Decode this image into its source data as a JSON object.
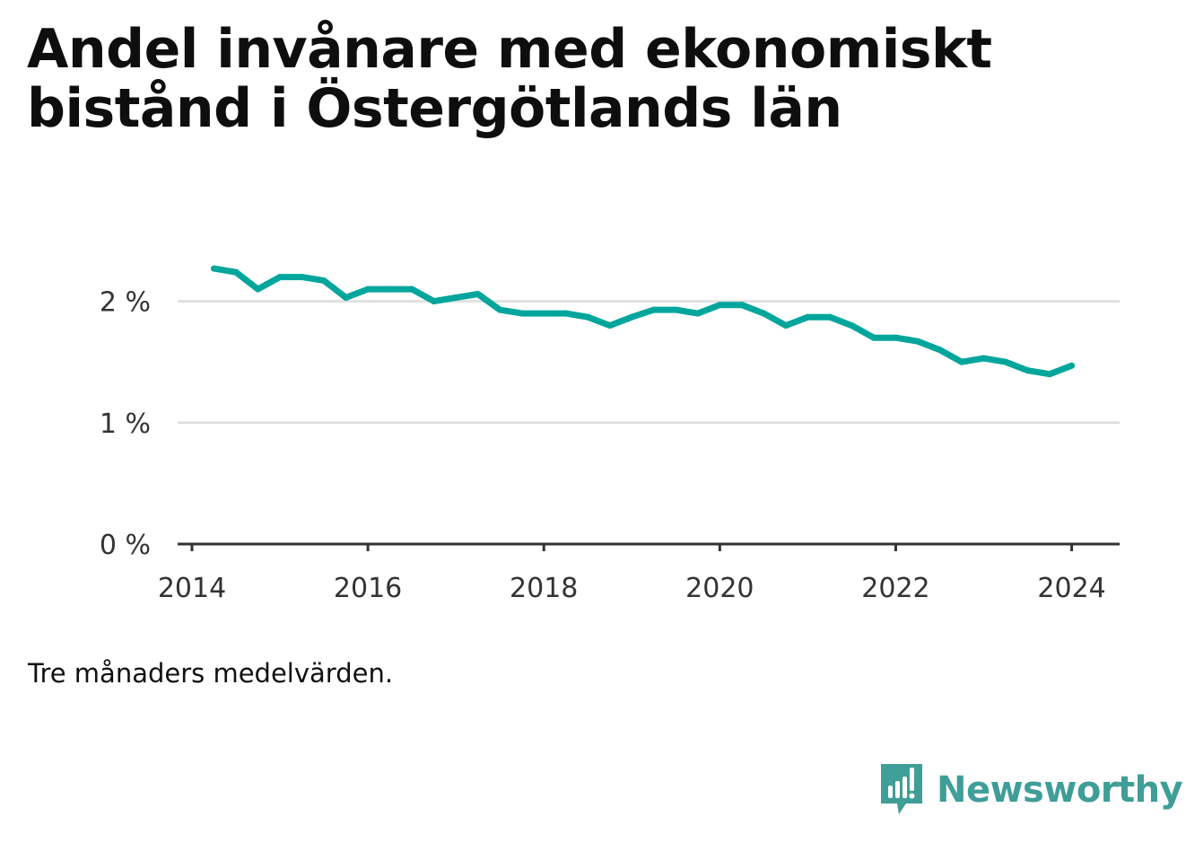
{
  "chart_data": {
    "type": "line",
    "title": "Andel invånare med ekonomiskt bistånd i Östergötlands län",
    "subtitle": "",
    "xlabel": "",
    "ylabel": "",
    "note": "Tre månaders medelvärden.",
    "x_range": [
      2014.0,
      2024.3
    ],
    "ylim": [
      0,
      2.5
    ],
    "y_ticks": [
      {
        "value": 0,
        "label": "0 %"
      },
      {
        "value": 1,
        "label": "1 %"
      },
      {
        "value": 2,
        "label": "2 %"
      }
    ],
    "x_ticks": [
      {
        "value": 2014,
        "label": "2014"
      },
      {
        "value": 2016,
        "label": "2016"
      },
      {
        "value": 2018,
        "label": "2018"
      },
      {
        "value": 2020,
        "label": "2020"
      },
      {
        "value": 2022,
        "label": "2022"
      },
      {
        "value": 2024,
        "label": "2024"
      }
    ],
    "grid": true,
    "series": [
      {
        "color": "#00a69c",
        "points": [
          {
            "x": "2014-04",
            "y": 2.27
          },
          {
            "x": "2014-07",
            "y": 2.24
          },
          {
            "x": "2014-10",
            "y": 2.1
          },
          {
            "x": "2015-01",
            "y": 2.2
          },
          {
            "x": "2015-04",
            "y": 2.2
          },
          {
            "x": "2015-07",
            "y": 2.17
          },
          {
            "x": "2015-10",
            "y": 2.03
          },
          {
            "x": "2016-01",
            "y": 2.1
          },
          {
            "x": "2016-04",
            "y": 2.1
          },
          {
            "x": "2016-07",
            "y": 2.1
          },
          {
            "x": "2016-10",
            "y": 2.0
          },
          {
            "x": "2017-01",
            "y": 2.03
          },
          {
            "x": "2017-04",
            "y": 2.06
          },
          {
            "x": "2017-07",
            "y": 1.93
          },
          {
            "x": "2017-10",
            "y": 1.9
          },
          {
            "x": "2018-01",
            "y": 1.9
          },
          {
            "x": "2018-04",
            "y": 1.9
          },
          {
            "x": "2018-07",
            "y": 1.87
          },
          {
            "x": "2018-10",
            "y": 1.8
          },
          {
            "x": "2019-01",
            "y": 1.87
          },
          {
            "x": "2019-04",
            "y": 1.93
          },
          {
            "x": "2019-07",
            "y": 1.93
          },
          {
            "x": "2019-10",
            "y": 1.9
          },
          {
            "x": "2020-01",
            "y": 1.97
          },
          {
            "x": "2020-04",
            "y": 1.97
          },
          {
            "x": "2020-07",
            "y": 1.9
          },
          {
            "x": "2020-10",
            "y": 1.8
          },
          {
            "x": "2021-01",
            "y": 1.87
          },
          {
            "x": "2021-04",
            "y": 1.87
          },
          {
            "x": "2021-07",
            "y": 1.8
          },
          {
            "x": "2021-10",
            "y": 1.7
          },
          {
            "x": "2022-01",
            "y": 1.7
          },
          {
            "x": "2022-04",
            "y": 1.67
          },
          {
            "x": "2022-07",
            "y": 1.6
          },
          {
            "x": "2022-10",
            "y": 1.5
          },
          {
            "x": "2023-01",
            "y": 1.53
          },
          {
            "x": "2023-04",
            "y": 1.5
          },
          {
            "x": "2023-07",
            "y": 1.43
          },
          {
            "x": "2023-10",
            "y": 1.4
          },
          {
            "x": "2024-01",
            "y": 1.47
          }
        ]
      }
    ]
  },
  "brand": {
    "name": "Newsworthy",
    "icon": "newsworthy-logo-icon",
    "color": "#3f9e97"
  }
}
